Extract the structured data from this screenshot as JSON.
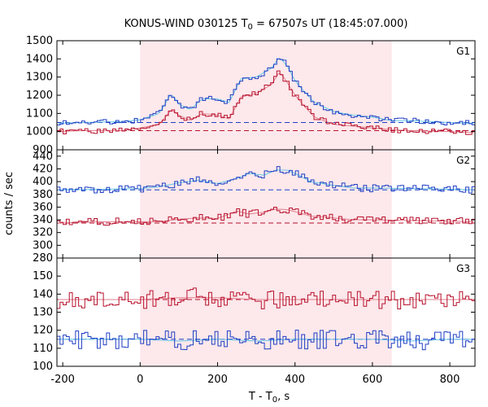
{
  "chart_data": {
    "type": "line",
    "title_main": "KONUS-WIND 030125 T",
    "title_sub": "0",
    "title_rest": " = 67507s UT (18:45:07.000)",
    "xlabel_main": "T - T",
    "xlabel_sub": "0",
    "xlabel_rest": ", s",
    "ylabel": "counts / sec",
    "xlim": [
      -215,
      865
    ],
    "x_ticks": [
      -200,
      0,
      200,
      400,
      600,
      800
    ],
    "highlight_interval": [
      0,
      650
    ],
    "colors": {
      "red": "#b8112c",
      "blue": "#1f3fc4",
      "light_blue": "#66c6e6",
      "pink": "#e07f8e",
      "highlight": "#fde8eb"
    },
    "panels": [
      {
        "label": "G1",
        "ylim": [
          900,
          1500
        ],
        "y_ticks": [
          900,
          1000,
          1100,
          1200,
          1300,
          1400,
          1500
        ],
        "background_levels": {
          "blue": 1050,
          "red": 1005
        },
        "series": [
          {
            "color": "blue",
            "points": [
              [
                -215,
                1045
              ],
              [
                -150,
                1050
              ],
              [
                -50,
                1055
              ],
              [
                0,
                1065
              ],
              [
                50,
                1100
              ],
              [
                80,
                1210
              ],
              [
                100,
                1150
              ],
              [
                130,
                1120
              ],
              [
                160,
                1180
              ],
              [
                200,
                1180
              ],
              [
                230,
                1160
              ],
              [
                260,
                1290
              ],
              [
                300,
                1300
              ],
              [
                340,
                1350
              ],
              [
                360,
                1410
              ],
              [
                380,
                1360
              ],
              [
                400,
                1280
              ],
              [
                420,
                1230
              ],
              [
                450,
                1160
              ],
              [
                500,
                1110
              ],
              [
                550,
                1090
              ],
              [
                600,
                1080
              ],
              [
                650,
                1060
              ],
              [
                700,
                1060
              ],
              [
                800,
                1050
              ],
              [
                865,
                1045
              ]
            ]
          },
          {
            "color": "red",
            "points": [
              [
                -215,
                1000
              ],
              [
                -150,
                1005
              ],
              [
                -50,
                1005
              ],
              [
                0,
                1020
              ],
              [
                50,
                1040
              ],
              [
                80,
                1120
              ],
              [
                100,
                1090
              ],
              [
                130,
                1060
              ],
              [
                160,
                1100
              ],
              [
                200,
                1090
              ],
              [
                230,
                1070
              ],
              [
                260,
                1190
              ],
              [
                300,
                1210
              ],
              [
                340,
                1260
              ],
              [
                360,
                1330
              ],
              [
                380,
                1270
              ],
              [
                400,
                1200
              ],
              [
                420,
                1150
              ],
              [
                450,
                1080
              ],
              [
                500,
                1040
              ],
              [
                550,
                1030
              ],
              [
                600,
                1020
              ],
              [
                650,
                1010
              ],
              [
                700,
                1005
              ],
              [
                800,
                1000
              ],
              [
                865,
                995
              ]
            ]
          }
        ]
      },
      {
        "label": "G2",
        "ylim": [
          280,
          450
        ],
        "y_ticks": [
          280,
          300,
          320,
          340,
          360,
          380,
          400,
          420,
          440
        ],
        "background_levels": {
          "blue": 387,
          "red": 335
        },
        "series": [
          {
            "color": "blue",
            "points": [
              [
                -215,
                387
              ],
              [
                -100,
                388
              ],
              [
                0,
                389
              ],
              [
                50,
                392
              ],
              [
                100,
                398
              ],
              [
                150,
                402
              ],
              [
                200,
                397
              ],
              [
                250,
                405
              ],
              [
                280,
                413
              ],
              [
                320,
                410
              ],
              [
                350,
                418
              ],
              [
                380,
                418
              ],
              [
                410,
                410
              ],
              [
                440,
                400
              ],
              [
                500,
                394
              ],
              [
                550,
                390
              ],
              [
                600,
                390
              ],
              [
                700,
                389
              ],
              [
                800,
                388
              ],
              [
                865,
                387
              ]
            ]
          },
          {
            "color": "red",
            "points": [
              [
                -215,
                335
              ],
              [
                -100,
                337
              ],
              [
                0,
                337
              ],
              [
                50,
                337
              ],
              [
                100,
                341
              ],
              [
                150,
                343
              ],
              [
                200,
                342
              ],
              [
                250,
                354
              ],
              [
                280,
                349
              ],
              [
                320,
                352
              ],
              [
                350,
                357
              ],
              [
                380,
                356
              ],
              [
                410,
                351
              ],
              [
                440,
                346
              ],
              [
                500,
                343
              ],
              [
                550,
                340
              ],
              [
                600,
                340
              ],
              [
                700,
                339
              ],
              [
                800,
                338
              ],
              [
                865,
                337
              ]
            ]
          }
        ]
      },
      {
        "label": "G3",
        "ylim": [
          100,
          160
        ],
        "y_ticks": [
          100,
          110,
          120,
          130,
          140,
          150
        ],
        "background_levels": {
          "blue": 115,
          "red": 137
        },
        "series": [
          {
            "color": "blue",
            "points": [
              [
                -215,
                115
              ],
              [
                -100,
                115
              ],
              [
                0,
                115
              ],
              [
                100,
                114
              ],
              [
                200,
                115
              ],
              [
                300,
                114
              ],
              [
                400,
                115
              ],
              [
                500,
                115
              ],
              [
                600,
                115
              ],
              [
                700,
                114
              ],
              [
                800,
                115
              ],
              [
                865,
                115
              ]
            ]
          },
          {
            "color": "red",
            "points": [
              [
                -215,
                137
              ],
              [
                -100,
                137
              ],
              [
                0,
                137
              ],
              [
                100,
                138
              ],
              [
                200,
                138
              ],
              [
                300,
                137
              ],
              [
                400,
                137
              ],
              [
                500,
                137
              ],
              [
                600,
                137
              ],
              [
                700,
                137
              ],
              [
                800,
                137
              ],
              [
                865,
                137
              ]
            ]
          }
        ]
      }
    ]
  }
}
